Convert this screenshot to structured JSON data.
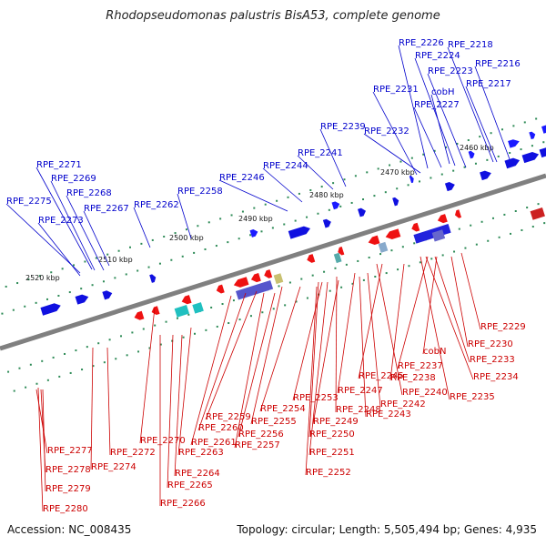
{
  "title": "Rhodopseudomonas palustris BisA53, complete genome",
  "footer": {
    "accession": "Accession: NC_008435",
    "summary": "Topology: circular; Length: 5,505,494 bp; Genes: 4,935"
  },
  "colors": {
    "forward_label": "#0000cc",
    "reverse_label": "#cc0000",
    "backbone": "#808080",
    "tick": "#2e8b57"
  },
  "kbp_marks": [
    "2460 kbp",
    "2470 kbp",
    "2480 kbp",
    "2490 kbp",
    "2500 kbp",
    "2510 kbp",
    "2520 kbp"
  ],
  "forward_labels": [
    "RPE_2226",
    "RPE_2218",
    "RPE_2224",
    "RPE_2216",
    "RPE_2223",
    "RPE_2217",
    "cobH",
    "RPE_2231",
    "RPE_2227",
    "RPE_2239",
    "RPE_2232",
    "RPE_2241",
    "RPE_2244",
    "RPE_2246",
    "RPE_2258",
    "RPE_2262",
    "RPE_2271",
    "RPE_2269",
    "RPE_2268",
    "RPE_2275",
    "RPE_2267",
    "RPE_2273"
  ],
  "reverse_labels": [
    "RPE_2229",
    "RPE_2230",
    "cobN",
    "RPE_2233",
    "RPE_2237",
    "RPE_2234",
    "RPE_2238",
    "RPE_2245",
    "RPE_2240",
    "RPE_2235",
    "RPE_2247",
    "RPE_2242",
    "RPE_2253",
    "RPE_2248",
    "RPE_2243",
    "RPE_2254",
    "RPE_2259",
    "RPE_2249",
    "RPE_2255",
    "RPE_2260",
    "RPE_2250",
    "RPE_2256",
    "RPE_2270",
    "RPE_2261",
    "RPE_2257",
    "RPE_2251",
    "RPE_2277",
    "RPE_2272",
    "RPE_2263",
    "RPE_2278",
    "RPE_2274",
    "RPE_2252",
    "RPE_2264",
    "RPE_2279",
    "RPE_2265",
    "RPE_2280",
    "RPE_2266"
  ]
}
